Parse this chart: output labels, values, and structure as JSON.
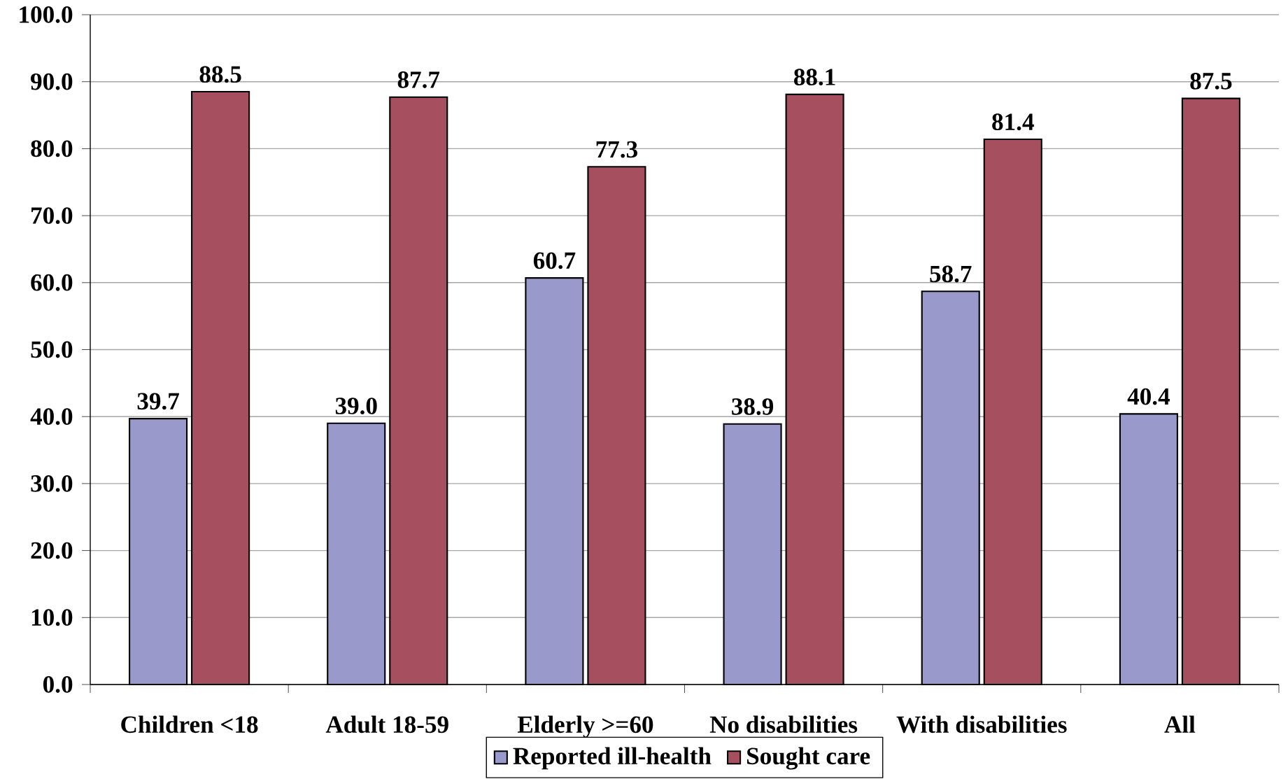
{
  "chart_data": {
    "type": "bar",
    "categories": [
      "Children <18",
      "Adult 18-59",
      "Elderly >=60",
      "No disabilities",
      "With disabilities",
      "All"
    ],
    "series": [
      {
        "name": "Reported ill-health",
        "color": "#9999cc",
        "values": [
          39.7,
          39.0,
          60.7,
          38.9,
          58.7,
          40.4
        ],
        "value_labels": [
          "39.7",
          "39.0",
          "60.7",
          "38.9",
          "58.7",
          "40.4"
        ]
      },
      {
        "name": "Sought care",
        "color": "#a6505f",
        "values": [
          88.5,
          87.7,
          77.3,
          88.1,
          81.4,
          87.5
        ],
        "value_labels": [
          "88.5",
          "87.7",
          "77.3",
          "88.1",
          "81.4",
          "87.5"
        ]
      }
    ],
    "ylim": [
      0,
      100
    ],
    "yticks": [
      {
        "value": 0,
        "label": "0.0"
      },
      {
        "value": 10,
        "label": "10.0"
      },
      {
        "value": 20,
        "label": "20.0"
      },
      {
        "value": 30,
        "label": "30.0"
      },
      {
        "value": 40,
        "label": "40.0"
      },
      {
        "value": 50,
        "label": "50.0"
      },
      {
        "value": 60,
        "label": "60.0"
      },
      {
        "value": 70,
        "label": "70.0"
      },
      {
        "value": 80,
        "label": "80.0"
      },
      {
        "value": 90,
        "label": "90.0"
      },
      {
        "value": 100,
        "label": "100.0"
      }
    ],
    "grid": "y",
    "legend": "bottom"
  }
}
